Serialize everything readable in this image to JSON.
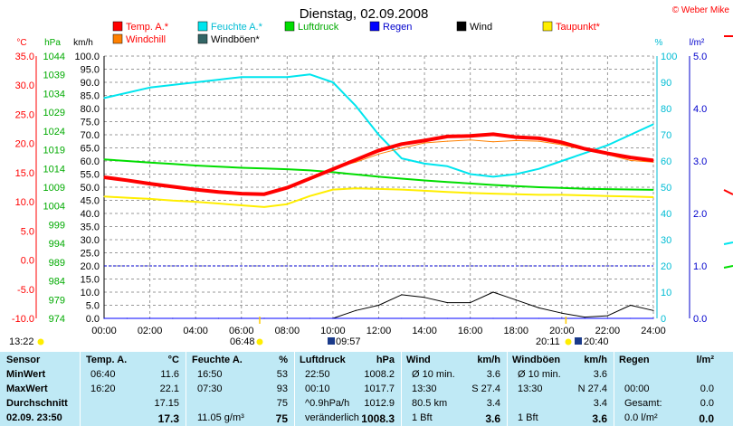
{
  "title": "Dienstag, 02.09.2008",
  "copyright": "© Weber Mike",
  "axes": {
    "c_unit": "°C",
    "hpa_unit": "hPa",
    "kmh_unit": "km/h",
    "pct_unit": "%",
    "rain_unit": "l/m²",
    "c_ticks": [
      "35.0",
      "30.0",
      "25.0",
      "20.0",
      "15.0",
      "10.0",
      "5.0",
      "0.0",
      "-5.0",
      "-10.0"
    ],
    "hpa_ticks": [
      "1044",
      "1039",
      "1034",
      "1029",
      "1024",
      "1019",
      "1014",
      "1009",
      "1004",
      "999",
      "994",
      "989",
      "984",
      "979",
      "974"
    ],
    "kmh_ticks": [
      "100.0",
      "95.0",
      "90.0",
      "85.0",
      "80.0",
      "75.0",
      "70.0",
      "65.0",
      "60.0",
      "55.0",
      "50.0",
      "45.0",
      "40.0",
      "35.0",
      "30.0",
      "25.0",
      "20.0",
      "15.0",
      "10.0",
      "5.0",
      "0.0"
    ],
    "pct_ticks": [
      "100",
      "90",
      "80",
      "70",
      "60",
      "50",
      "40",
      "30",
      "20",
      "10",
      "0"
    ],
    "rain_ticks": [
      "5.0",
      "4.0",
      "3.0",
      "2.0",
      "1.0",
      "0.0"
    ],
    "time_ticks": [
      "00:00",
      "02:00",
      "04:00",
      "06:00",
      "08:00",
      "10:00",
      "12:00",
      "14:00",
      "16:00",
      "18:00",
      "20:00",
      "22:00",
      "24:00"
    ]
  },
  "legend": [
    {
      "label": "Temp. A.*",
      "color": "#ff0000"
    },
    {
      "label": "Feuchte A.*",
      "color": "#00e5ee"
    },
    {
      "label": "Luftdruck",
      "color": "#00dd00"
    },
    {
      "label": "Regen",
      "color": "#0000ff"
    },
    {
      "label": "Wind",
      "color": "#000000"
    },
    {
      "label": "Taupunkt*",
      "color": "#ffee00"
    },
    {
      "label": "Windchill",
      "color": "#ff8000"
    },
    {
      "label": "Windböen*",
      "color": "#336666"
    }
  ],
  "sun": {
    "sunrise": "06:48",
    "sunset": "20:11",
    "moonrise": "09:57",
    "moonset": "20:40",
    "left_time": "13:22"
  },
  "chart_data": {
    "type": "line",
    "x": [
      0,
      1,
      2,
      3,
      4,
      5,
      6,
      7,
      8,
      9,
      10,
      11,
      12,
      13,
      14,
      15,
      16,
      17,
      18,
      19,
      20,
      21,
      22,
      23,
      24
    ],
    "xlim": [
      0,
      24
    ],
    "series": [
      {
        "name": "Temp. A.*",
        "axis": "°C",
        "values": [
          14.2,
          13.7,
          13.1,
          12.6,
          12.1,
          11.7,
          11.4,
          11.3,
          12.4,
          14.0,
          15.6,
          17.2,
          18.8,
          19.9,
          20.5,
          21.2,
          21.3,
          21.6,
          21.1,
          20.9,
          20.2,
          19.1,
          18.3,
          17.6,
          17.1
        ]
      },
      {
        "name": "Feuchte A.*",
        "axis": "%",
        "values": [
          84,
          86,
          88,
          89,
          90,
          91,
          92,
          92,
          92,
          93,
          90,
          81,
          70,
          61,
          59,
          58,
          55,
          54,
          55,
          57,
          60,
          63,
          66,
          70,
          74
        ]
      },
      {
        "name": "Luftdruck",
        "axis": "hPa",
        "values": [
          1016.4,
          1016.0,
          1015.6,
          1015.2,
          1014.8,
          1014.5,
          1014.2,
          1014.0,
          1013.8,
          1013.5,
          1013.0,
          1012.4,
          1011.8,
          1011.3,
          1010.8,
          1010.4,
          1010.0,
          1009.6,
          1009.3,
          1009.0,
          1008.8,
          1008.6,
          1008.5,
          1008.4,
          1008.3
        ]
      },
      {
        "name": "Taupunkt*",
        "axis": "°C",
        "values": [
          10.9,
          10.7,
          10.5,
          10.2,
          10.0,
          9.7,
          9.4,
          9.1,
          9.6,
          11.0,
          12.1,
          12.3,
          12.2,
          12.1,
          11.9,
          11.7,
          11.5,
          11.4,
          11.3,
          11.2,
          11.2,
          11.1,
          11.0,
          10.9,
          10.8
        ]
      },
      {
        "name": "Windchill",
        "axis": "°C",
        "values": [
          14.2,
          13.7,
          13.1,
          12.6,
          12.1,
          11.7,
          11.4,
          11.3,
          12.4,
          14.2,
          15.8,
          16.8,
          18.2,
          19.2,
          20.1,
          20.4,
          20.6,
          20.3,
          20.5,
          20.4,
          19.8,
          18.9,
          18.1,
          17.1,
          16.8
        ]
      },
      {
        "name": "Wind",
        "axis": "km/h",
        "values": [
          0,
          0,
          0,
          0,
          0,
          0,
          0,
          0,
          0,
          0,
          0,
          3,
          5,
          9,
          8,
          6,
          6,
          10,
          7,
          4,
          2,
          0.5,
          1,
          5,
          3
        ]
      },
      {
        "name": "Regen",
        "axis": "l/m²",
        "values": [
          0,
          0,
          0,
          0,
          0,
          0,
          0,
          0,
          0,
          0,
          0,
          0,
          0,
          0,
          0,
          0,
          0,
          0,
          0,
          0,
          0,
          0,
          0,
          0,
          0
        ]
      }
    ],
    "reference_line": {
      "axis": "l/m²",
      "value": 1.0
    },
    "ylim_c": [
      -10,
      35
    ],
    "ylim_hpa": [
      974,
      1044
    ],
    "ylim_kmh": [
      0,
      100
    ],
    "ylim_pct": [
      0,
      100
    ],
    "ylim_rain": [
      0,
      5
    ]
  },
  "stats": {
    "headers": [
      "Sensor",
      "Temp. A.",
      "°C",
      "Feuchte A.",
      "%",
      "Luftdruck",
      "hPa",
      "Wind",
      "km/h",
      "Windböen",
      "km/h",
      "Regen",
      "l/m²"
    ],
    "rows": [
      {
        "label": "MinWert",
        "temp_time": "06:40",
        "temp_val": "11.6",
        "hum_time": "16:50",
        "hum_val": "53",
        "press_time": "22:50",
        "press_val": "1008.2",
        "wind_label": "Ø 10 min.",
        "wind_val": "3.6",
        "gust_label": "Ø 10 min.",
        "gust_val": "3.6",
        "rain_time": "",
        "rain_val": ""
      },
      {
        "label": "MaxWert",
        "temp_time": "16:20",
        "temp_val": "22.1",
        "hum_time": "07:30",
        "hum_val": "93",
        "press_time": "00:10",
        "press_val": "1017.7",
        "wind_label": "13:30",
        "wind_val": "S 27.4",
        "gust_label": "13:30",
        "gust_val": "N 27.4",
        "rain_time": "00:00",
        "rain_val": "0.0"
      },
      {
        "label": "Durchschnitt",
        "temp_time": "",
        "temp_val": "17.15",
        "hum_time": "",
        "hum_val": "75",
        "press_time": "^0.9hPa/h",
        "press_val": "1012.9",
        "wind_label": "80.5 km",
        "wind_val": "3.4",
        "gust_label": "",
        "gust_val": "3.4",
        "rain_time": "Gesamt:",
        "rain_val": "0.0"
      },
      {
        "label": "02.09.  23:50",
        "temp_time": "",
        "temp_val": "17.3",
        "hum_time": "11.05 g/m³",
        "hum_val": "75",
        "press_time": "veränderlich",
        "press_val": "1008.3",
        "wind_label": "1 Bft",
        "wind_val": "3.6",
        "gust_label": "1 Bft",
        "gust_val": "3.6",
        "rain_time": "0.0 l/m²",
        "rain_val": "0.0"
      }
    ]
  }
}
